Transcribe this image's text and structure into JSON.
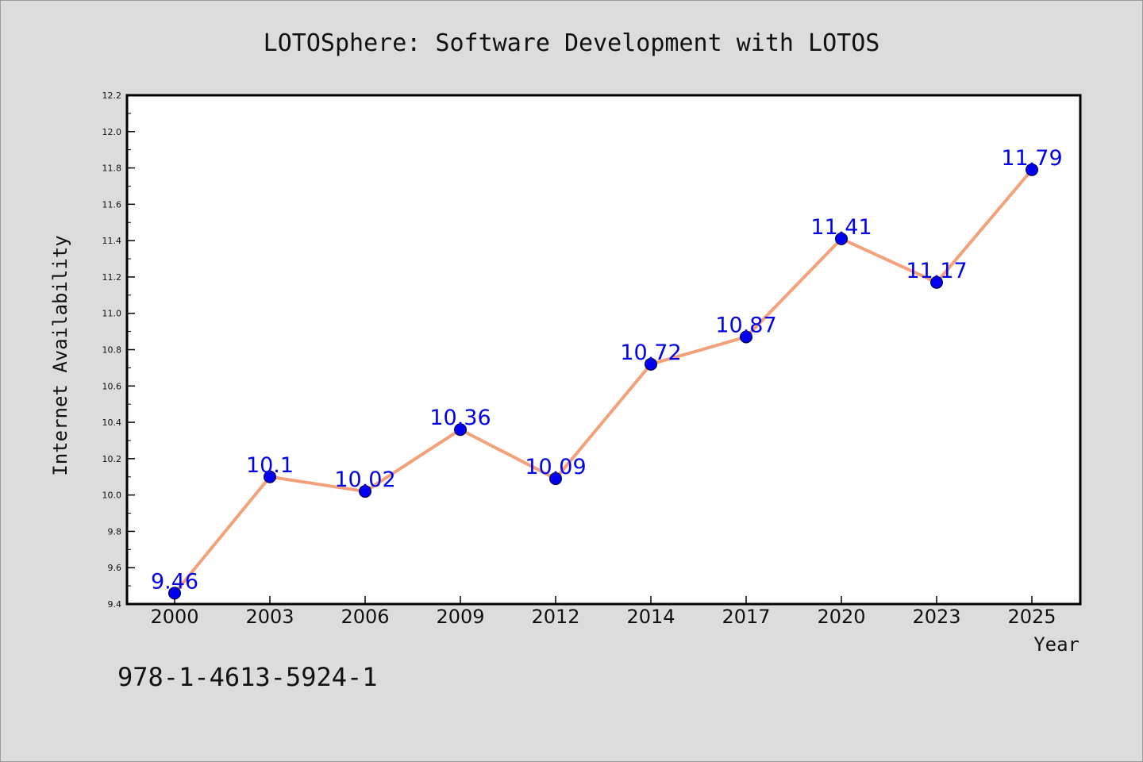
{
  "chart_data": {
    "type": "line",
    "title": "LOTOSphere: Software Development with LOTOS",
    "xlabel": "Year",
    "ylabel": "Internet Availability",
    "categories": [
      "2000",
      "2003",
      "2006",
      "2009",
      "2012",
      "2014",
      "2017",
      "2020",
      "2023",
      "2025"
    ],
    "values": [
      9.46,
      10.1,
      10.02,
      10.36,
      10.09,
      10.72,
      10.87,
      11.41,
      11.17,
      11.79
    ],
    "data_labels": [
      "9.46",
      "10.1",
      "10.02",
      "10.36",
      "10.09",
      "10.72",
      "10.87",
      "11.41",
      "11.17",
      "11.79"
    ],
    "ylim": [
      9.4,
      12.2
    ],
    "yticks": [
      "9.4",
      "9.6",
      "9.8",
      "10.0",
      "10.2",
      "10.4",
      "10.6",
      "10.8",
      "11.0",
      "11.2",
      "11.4",
      "11.6",
      "11.8",
      "12.0",
      "12.2"
    ],
    "grid": false,
    "line_color": "#f4a07a",
    "marker_color": "#0000ee",
    "label_color": "#0000ee"
  },
  "footer": {
    "isbn": "978-1-4613-5924-1"
  }
}
